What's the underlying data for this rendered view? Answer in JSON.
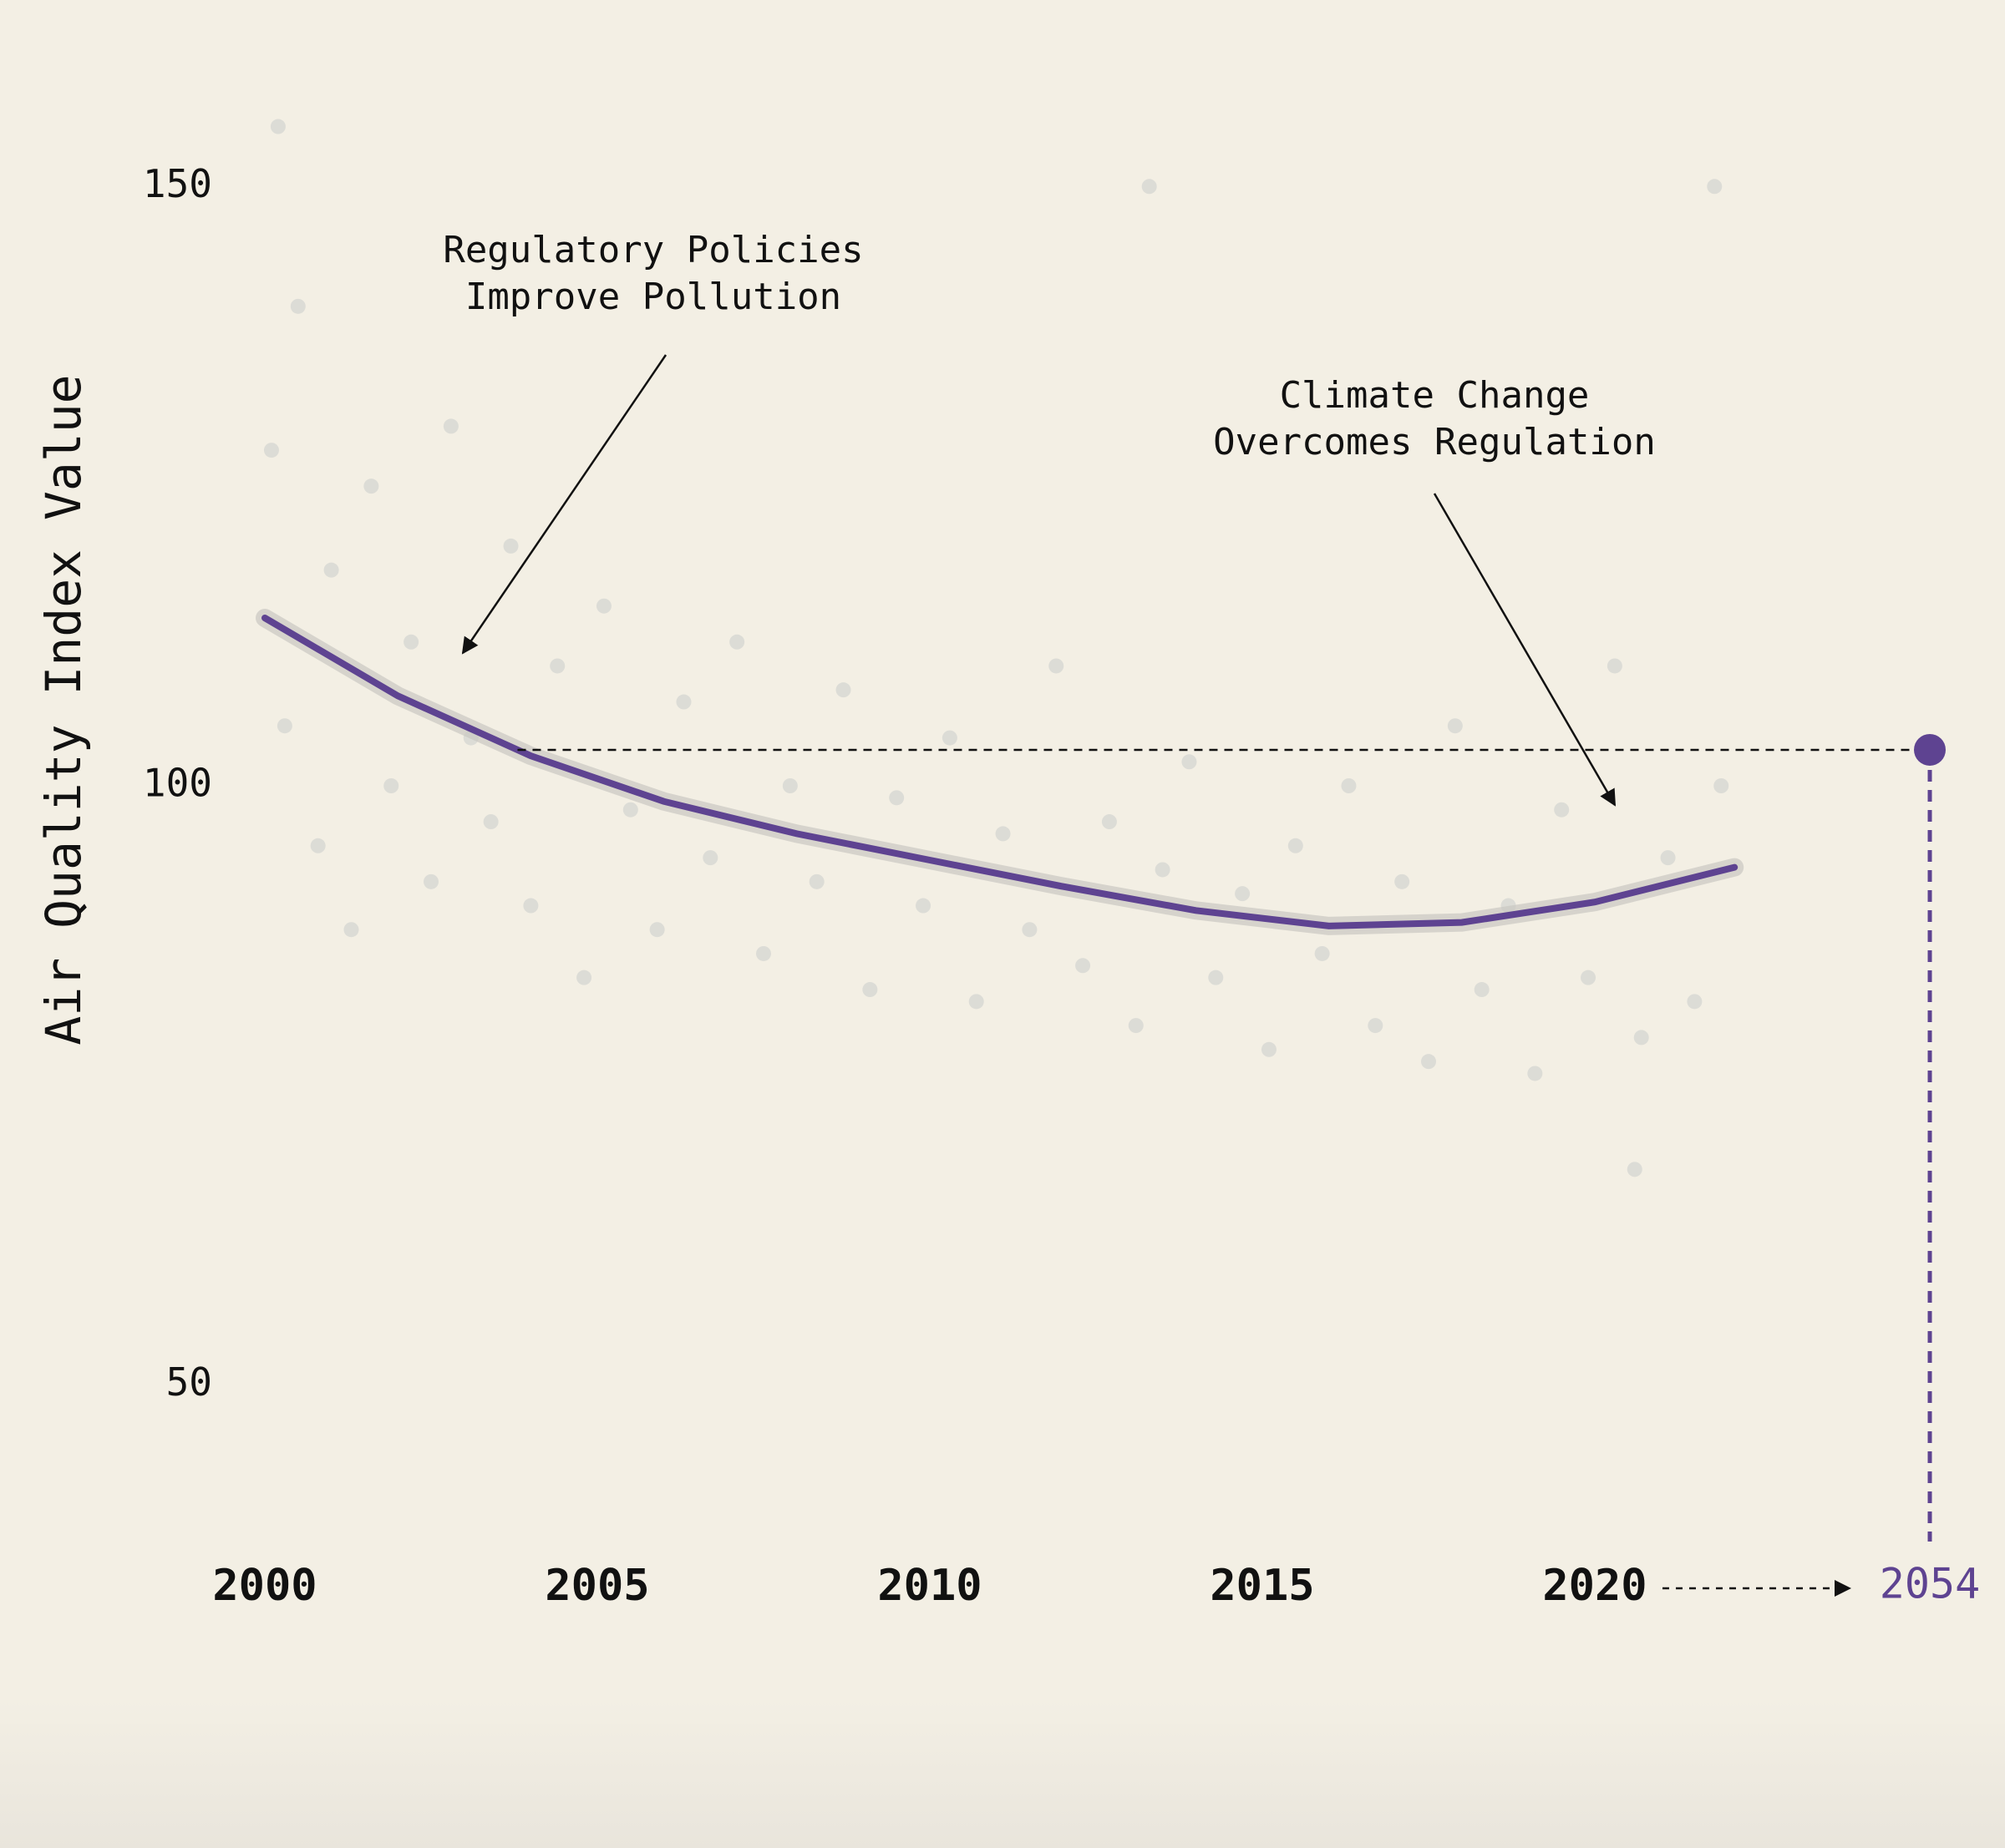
{
  "chart_data": {
    "type": "scatter",
    "y_label": "Air Quality Index Value",
    "xlim": [
      2000,
      2022
    ],
    "xticks": [
      2000,
      2005,
      2010,
      2015,
      2020
    ],
    "ylim": [
      35,
      165
    ],
    "yticks": [
      50,
      100,
      150
    ],
    "series": [
      {
        "type": "scatter",
        "color": "#dcdcd6",
        "x": [
          2000.1,
          2000.3,
          2000.5,
          2000.8,
          2001.0,
          2001.3,
          2001.6,
          2001.9,
          2002.2,
          2002.5,
          2002.8,
          2003.1,
          2003.4,
          2003.7,
          2004.0,
          2004.4,
          2004.8,
          2005.1,
          2005.5,
          2005.9,
          2006.3,
          2006.7,
          2007.1,
          2007.5,
          2007.9,
          2008.3,
          2008.7,
          2009.1,
          2009.5,
          2009.9,
          2010.3,
          2010.7,
          2011.1,
          2011.5,
          2011.9,
          2012.3,
          2012.7,
          2013.1,
          2013.5,
          2013.9,
          2014.3,
          2014.7,
          2015.1,
          2015.5,
          2015.9,
          2016.3,
          2016.7,
          2017.1,
          2017.5,
          2017.9,
          2018.3,
          2018.7,
          2019.1,
          2019.5,
          2019.9,
          2020.3,
          2020.7,
          2021.1,
          2021.5,
          2021.9,
          2000.2,
          2013.3,
          2021.8,
          2020.6
        ],
        "values": [
          128,
          105,
          140,
          95,
          118,
          88,
          125,
          100,
          112,
          92,
          130,
          104,
          97,
          120,
          90,
          110,
          84,
          115,
          98,
          88,
          107,
          94,
          112,
          86,
          100,
          92,
          108,
          83,
          99,
          90,
          104,
          82,
          96,
          88,
          110,
          85,
          97,
          80,
          93,
          102,
          84,
          91,
          78,
          95,
          86,
          100,
          80,
          92,
          77,
          105,
          83,
          90,
          76,
          98,
          84,
          110,
          79,
          94,
          82,
          100,
          155,
          150,
          150,
          68
        ]
      },
      {
        "type": "line",
        "color": "#5e4391",
        "x": [
          2000,
          2002,
          2004,
          2006,
          2008,
          2010,
          2012,
          2014,
          2016,
          2018,
          2020,
          2022.1
        ],
        "values": [
          114,
          107.5,
          102.5,
          98.7,
          96,
          93.8,
          91.6,
          89.6,
          88.3,
          88.6,
          90.3,
          93.2
        ]
      }
    ],
    "projection": {
      "year": "2054",
      "value": 103,
      "color": "#5e4391"
    },
    "annotations": [
      {
        "lines": [
          "Regulatory Policies",
          "Improve Pollution"
        ]
      },
      {
        "lines": [
          "Climate Change",
          "Overcomes Regulation"
        ]
      }
    ]
  }
}
